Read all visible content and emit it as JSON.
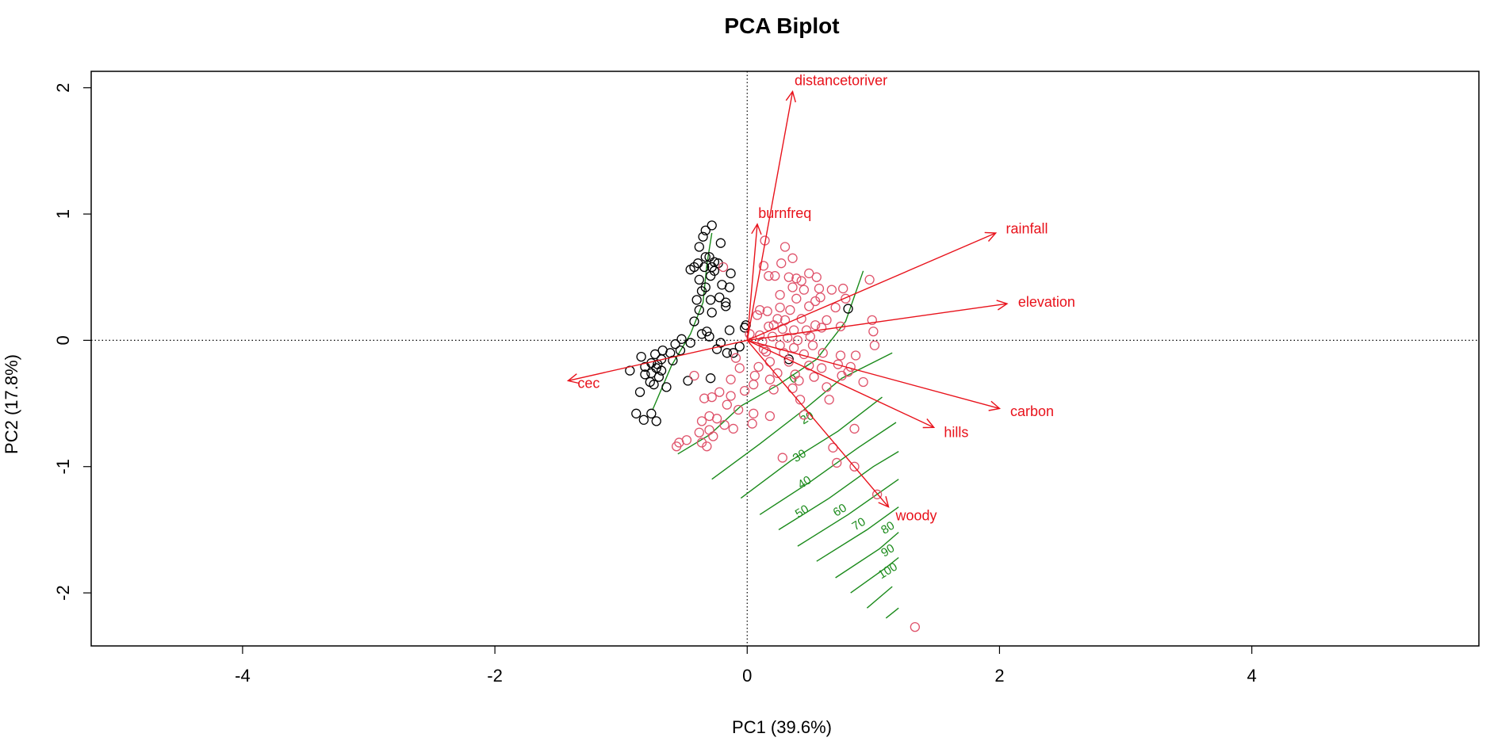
{
  "chart_data": {
    "type": "scatter",
    "title": "PCA Biplot",
    "xlabel": "PC1 (39.6%)",
    "ylabel": "PC2 (17.8%)",
    "xlim": [
      -5.2,
      5.8
    ],
    "ylim": [
      -2.42,
      2.13
    ],
    "xticks": [
      -4,
      -2,
      0,
      2,
      4
    ],
    "yticks": [
      -2,
      -1,
      0,
      1,
      2
    ],
    "reference_lines": {
      "h": 0,
      "v": 0,
      "style": "dotted"
    },
    "colors": {
      "group_a": "#000000",
      "group_b": "#df536b",
      "loadings": "#e8121b",
      "contours": "#1a8a1a"
    },
    "loadings": [
      {
        "name": "distancetoriver",
        "x": 0.36,
        "y": 1.97
      },
      {
        "name": "burnfreq",
        "x": 0.08,
        "y": 0.92
      },
      {
        "name": "rainfall",
        "x": 1.97,
        "y": 0.85
      },
      {
        "name": "elevation",
        "x": 2.06,
        "y": 0.29
      },
      {
        "name": "cec",
        "x": -1.42,
        "y": -0.32
      },
      {
        "name": "carbon",
        "x": 2.0,
        "y": -0.54
      },
      {
        "name": "hills",
        "x": 1.48,
        "y": -0.69
      },
      {
        "name": "woody",
        "x": 1.12,
        "y": -1.32
      }
    ],
    "contours": {
      "variable": "woody",
      "levels": [
        {
          "level": "0",
          "x": 0.38,
          "y": -0.33
        },
        {
          "level": "20",
          "x": 0.49,
          "y": -0.64
        },
        {
          "level": "30",
          "x": 0.43,
          "y": -0.94
        },
        {
          "level": "40",
          "x": 0.47,
          "y": -1.15
        },
        {
          "level": "50",
          "x": 0.45,
          "y": -1.38
        },
        {
          "level": "60",
          "x": 0.75,
          "y": -1.37
        },
        {
          "level": "70",
          "x": 0.9,
          "y": -1.48
        },
        {
          "level": "80",
          "x": 1.13,
          "y": -1.51
        },
        {
          "level": "90",
          "x": 1.13,
          "y": -1.69
        },
        {
          "level": "100",
          "x": 1.13,
          "y": -1.85
        }
      ]
    },
    "series": [
      {
        "name": "",
        "color": "#000000",
        "points": [
          [
            -0.28,
            0.91
          ],
          [
            -0.33,
            0.87
          ],
          [
            -0.35,
            0.82
          ],
          [
            -0.38,
            0.74
          ],
          [
            -0.21,
            0.77
          ],
          [
            -0.3,
            0.66
          ],
          [
            -0.26,
            0.62
          ],
          [
            -0.33,
            0.66
          ],
          [
            -0.39,
            0.61
          ],
          [
            -0.28,
            0.58
          ],
          [
            -0.23,
            0.61
          ],
          [
            -0.34,
            0.58
          ],
          [
            -0.42,
            0.58
          ],
          [
            -0.45,
            0.56
          ],
          [
            -0.13,
            0.53
          ],
          [
            -0.26,
            0.55
          ],
          [
            -0.29,
            0.51
          ],
          [
            -0.38,
            0.48
          ],
          [
            -0.2,
            0.44
          ],
          [
            -0.33,
            0.42
          ],
          [
            -0.36,
            0.39
          ],
          [
            -0.14,
            0.42
          ],
          [
            -0.22,
            0.34
          ],
          [
            -0.29,
            0.32
          ],
          [
            -0.17,
            0.3
          ],
          [
            -0.17,
            0.27
          ],
          [
            -0.38,
            0.24
          ],
          [
            -0.28,
            0.22
          ],
          [
            -0.42,
            0.15
          ],
          [
            -0.01,
            0.12
          ],
          [
            -0.02,
            0.1
          ],
          [
            -0.32,
            0.07
          ],
          [
            -0.36,
            0.05
          ],
          [
            -0.14,
            0.08
          ],
          [
            -0.3,
            0.03
          ],
          [
            -0.52,
            0.01
          ],
          [
            -0.45,
            -0.02
          ],
          [
            -0.57,
            -0.03
          ],
          [
            -0.21,
            -0.02
          ],
          [
            -0.24,
            -0.07
          ],
          [
            -0.53,
            -0.08
          ],
          [
            -0.67,
            -0.08
          ],
          [
            -0.61,
            -0.1
          ],
          [
            -0.73,
            -0.11
          ],
          [
            -0.84,
            -0.13
          ],
          [
            -0.68,
            -0.15
          ],
          [
            -0.59,
            -0.16
          ],
          [
            -0.76,
            -0.18
          ],
          [
            -0.71,
            -0.19
          ],
          [
            -0.81,
            -0.21
          ],
          [
            -0.72,
            -0.22
          ],
          [
            -0.68,
            -0.24
          ],
          [
            -0.93,
            -0.24
          ],
          [
            -0.76,
            -0.26
          ],
          [
            -0.81,
            -0.27
          ],
          [
            -0.7,
            -0.29
          ],
          [
            -0.77,
            -0.33
          ],
          [
            -0.74,
            -0.35
          ],
          [
            -0.64,
            -0.37
          ],
          [
            -0.47,
            -0.32
          ],
          [
            -0.29,
            -0.3
          ],
          [
            -0.85,
            -0.41
          ],
          [
            -0.88,
            -0.58
          ],
          [
            -0.76,
            -0.58
          ],
          [
            -0.82,
            -0.63
          ],
          [
            -0.72,
            -0.64
          ],
          [
            0.33,
            -0.15
          ],
          [
            0.8,
            0.25
          ],
          [
            -0.11,
            -0.1
          ],
          [
            -0.16,
            -0.1
          ],
          [
            -0.06,
            -0.05
          ],
          [
            -0.4,
            0.32
          ]
        ]
      },
      {
        "name": "",
        "color": "#df536b",
        "points": [
          [
            0.14,
            0.79
          ],
          [
            0.3,
            0.74
          ],
          [
            0.36,
            0.65
          ],
          [
            0.27,
            0.61
          ],
          [
            0.17,
            0.51
          ],
          [
            0.22,
            0.51
          ],
          [
            0.33,
            0.5
          ],
          [
            0.39,
            0.49
          ],
          [
            0.49,
            0.53
          ],
          [
            0.55,
            0.5
          ],
          [
            0.43,
            0.47
          ],
          [
            0.97,
            0.48
          ],
          [
            0.36,
            0.42
          ],
          [
            0.45,
            0.4
          ],
          [
            0.57,
            0.41
          ],
          [
            0.67,
            0.4
          ],
          [
            0.76,
            0.41
          ],
          [
            0.26,
            0.36
          ],
          [
            0.39,
            0.33
          ],
          [
            0.54,
            0.31
          ],
          [
            0.58,
            0.34
          ],
          [
            0.78,
            0.33
          ],
          [
            0.1,
            0.24
          ],
          [
            0.16,
            0.23
          ],
          [
            0.26,
            0.26
          ],
          [
            0.34,
            0.24
          ],
          [
            0.49,
            0.27
          ],
          [
            0.7,
            0.26
          ],
          [
            0.24,
            0.17
          ],
          [
            0.3,
            0.16
          ],
          [
            0.43,
            0.17
          ],
          [
            0.54,
            0.12
          ],
          [
            0.63,
            0.16
          ],
          [
            0.99,
            0.16
          ],
          [
            0.17,
            0.11
          ],
          [
            0.28,
            0.09
          ],
          [
            0.37,
            0.08
          ],
          [
            0.47,
            0.08
          ],
          [
            0.59,
            0.1
          ],
          [
            0.74,
            0.11
          ],
          [
            1.0,
            0.07
          ],
          [
            0.1,
            0.04
          ],
          [
            0.2,
            0.03
          ],
          [
            0.32,
            0.02
          ],
          [
            0.5,
            0.03
          ],
          [
            0.12,
            -0.01
          ],
          [
            0.26,
            -0.04
          ],
          [
            0.37,
            -0.06
          ],
          [
            0.52,
            -0.04
          ],
          [
            1.01,
            -0.04
          ],
          [
            0.15,
            -0.09
          ],
          [
            0.29,
            -0.1
          ],
          [
            0.45,
            -0.11
          ],
          [
            0.6,
            -0.1
          ],
          [
            0.74,
            -0.12
          ],
          [
            0.86,
            -0.12
          ],
          [
            0.18,
            -0.17
          ],
          [
            0.33,
            -0.17
          ],
          [
            0.49,
            -0.2
          ],
          [
            0.59,
            -0.22
          ],
          [
            0.72,
            -0.19
          ],
          [
            0.82,
            -0.21
          ],
          [
            0.8,
            -0.25
          ],
          [
            0.24,
            -0.26
          ],
          [
            0.38,
            -0.27
          ],
          [
            0.53,
            -0.29
          ],
          [
            0.75,
            -0.28
          ],
          [
            0.92,
            -0.33
          ],
          [
            0.41,
            -0.32
          ],
          [
            0.63,
            -0.37
          ],
          [
            0.36,
            -0.38
          ],
          [
            0.21,
            -0.39
          ],
          [
            0.05,
            -0.35
          ],
          [
            -0.02,
            -0.4
          ],
          [
            -0.13,
            -0.44
          ],
          [
            -0.22,
            -0.41
          ],
          [
            -0.28,
            -0.45
          ],
          [
            -0.34,
            -0.46
          ],
          [
            -0.16,
            -0.51
          ],
          [
            -0.07,
            -0.55
          ],
          [
            0.05,
            -0.58
          ],
          [
            0.18,
            -0.6
          ],
          [
            -0.3,
            -0.6
          ],
          [
            -0.24,
            -0.62
          ],
          [
            -0.36,
            -0.64
          ],
          [
            -0.18,
            -0.67
          ],
          [
            -0.3,
            -0.71
          ],
          [
            -0.38,
            -0.73
          ],
          [
            -0.27,
            -0.76
          ],
          [
            -0.48,
            -0.79
          ],
          [
            -0.36,
            -0.81
          ],
          [
            -0.32,
            -0.84
          ],
          [
            -0.54,
            -0.81
          ],
          [
            -0.11,
            -0.7
          ],
          [
            0.04,
            -0.66
          ],
          [
            0.45,
            -0.59
          ],
          [
            0.85,
            -0.7
          ],
          [
            0.68,
            -0.85
          ],
          [
            0.71,
            -0.97
          ],
          [
            0.85,
            -1.0
          ],
          [
            1.03,
            -1.22
          ],
          [
            0.28,
            -0.93
          ],
          [
            -0.56,
            -0.84
          ],
          [
            1.33,
            -2.27
          ],
          [
            0.08,
            0.2
          ],
          [
            0.4,
            0.0
          ],
          [
            0.13,
            0.59
          ],
          [
            -0.19,
            0.58
          ],
          [
            0.06,
            -0.28
          ],
          [
            -0.06,
            -0.22
          ],
          [
            -0.09,
            -0.14
          ],
          [
            0.09,
            -0.21
          ],
          [
            0.13,
            -0.07
          ],
          [
            0.02,
            0.05
          ],
          [
            0.21,
            0.12
          ],
          [
            -0.42,
            -0.28
          ],
          [
            -0.13,
            -0.31
          ],
          [
            0.65,
            -0.47
          ],
          [
            0.42,
            -0.47
          ],
          [
            0.18,
            -0.31
          ]
        ]
      }
    ]
  }
}
